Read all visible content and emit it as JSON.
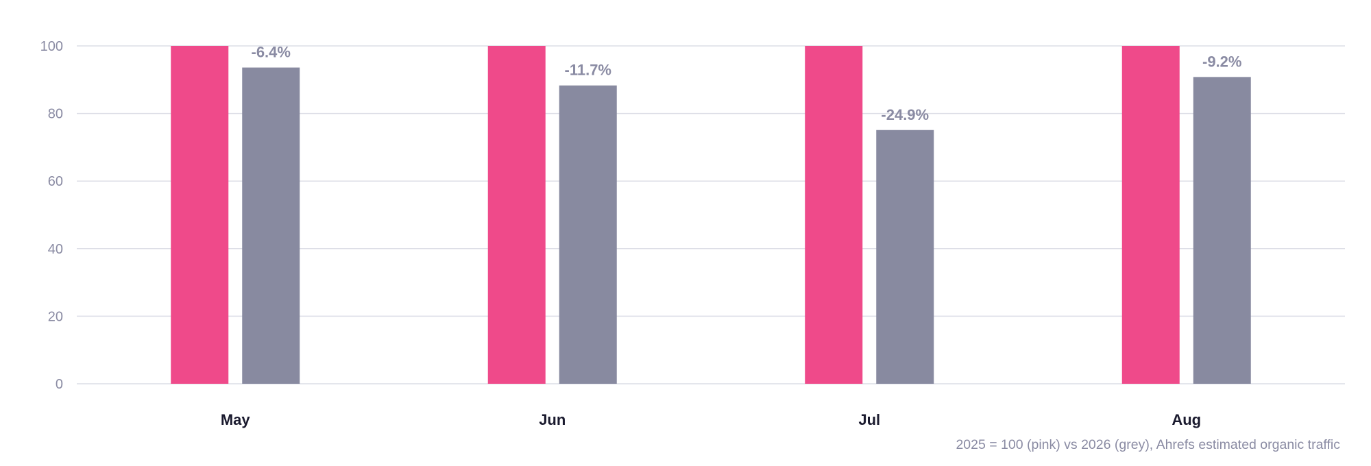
{
  "chart_data": {
    "type": "bar",
    "categories": [
      "May",
      "Jun",
      "Jul",
      "Aug"
    ],
    "series": [
      {
        "values": [
          100,
          100,
          100,
          100
        ],
        "color": "#ef4a8a"
      },
      {
        "values": [
          93.6,
          88.3,
          75.1,
          90.8
        ],
        "color": "#888aa0"
      }
    ],
    "data_labels": [
      "-6.4%",
      "-11.7%",
      "-24.9%",
      "-9.2%"
    ],
    "yticks": [
      "0",
      "20",
      "40",
      "60",
      "80",
      "100"
    ],
    "ylim": [
      0,
      100
    ],
    "grid": true,
    "footnote": "2025 = 100 (pink) vs 2026 (grey), Ahrefs estimated organic traffic"
  }
}
